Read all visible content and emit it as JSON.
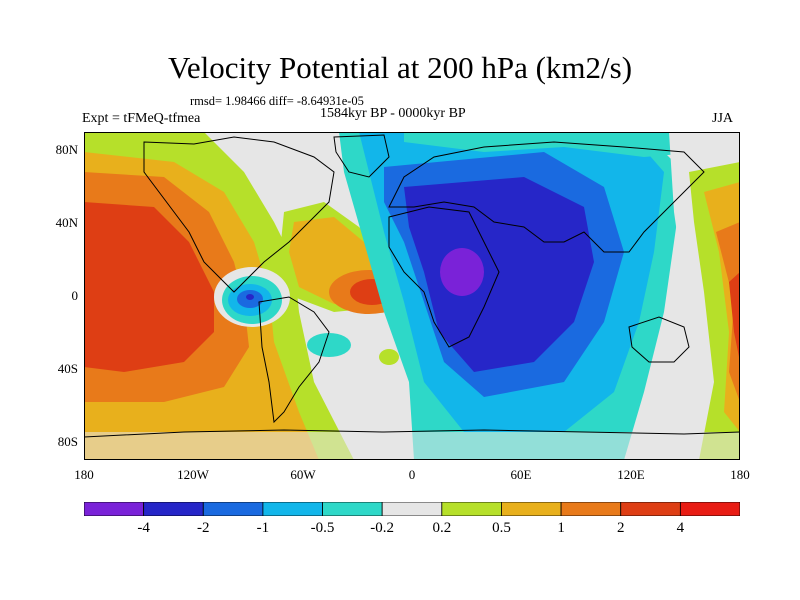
{
  "title": "Velocity Potential at 200 hPa (km2/s)",
  "stats": "rmsd= 1.98466 diff= -8.64931e-05",
  "period": "1584kyr BP - 0000kyr BP",
  "experiment": "Expt = tFMeQ-tfmea",
  "season": "JJA",
  "lat_labels": [
    "80N",
    "40N",
    "0",
    "40S",
    "80S"
  ],
  "lon_labels": [
    "180",
    "120W",
    "60W",
    "0",
    "60E",
    "120E",
    "180"
  ],
  "colorbar": {
    "labels": [
      "-4",
      "-2",
      "-1",
      "-0.5",
      "-0.2",
      "0.2",
      "0.5",
      "1",
      "2",
      "4"
    ],
    "colors": [
      "#7a22d8",
      "#2626c8",
      "#1a6ae0",
      "#12b6ea",
      "#2ed8c8",
      "#e6e6e6",
      "#b6e02a",
      "#e8b01c",
      "#e87a1a",
      "#de3e14",
      "#e81c14"
    ]
  }
}
